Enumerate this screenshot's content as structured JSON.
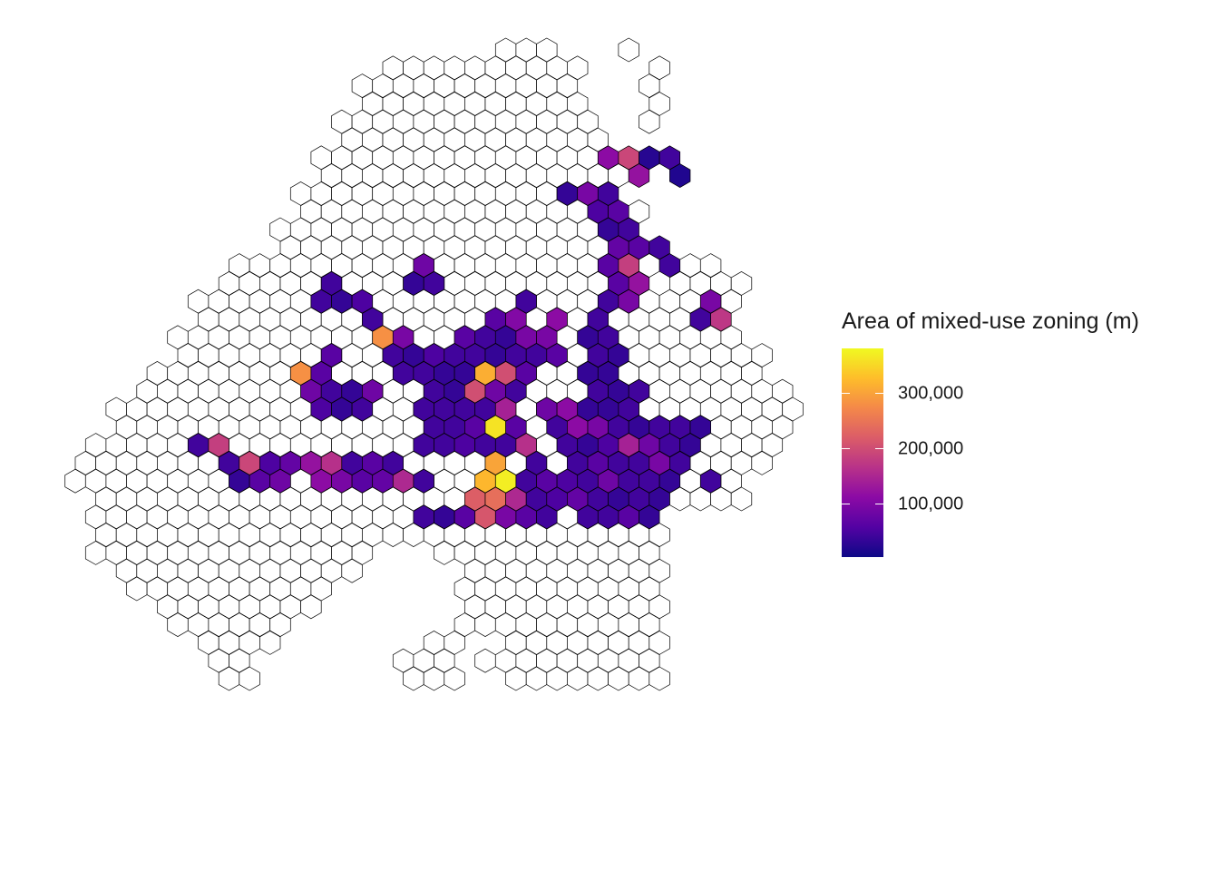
{
  "legend": {
    "title": "Area of mixed-use zoning (m)",
    "min": 0,
    "max": 380000,
    "breaks": [
      {
        "value": 100000,
        "label": "100,000"
      },
      {
        "value": 200000,
        "label": "200,000"
      },
      {
        "value": 300000,
        "label": "300,000"
      }
    ],
    "palette": [
      "#0d0887",
      "#5302a3",
      "#8b0aa5",
      "#b83289",
      "#db5c68",
      "#f48849",
      "#febd2a",
      "#f0f921"
    ]
  },
  "map": {
    "empty_fill": "#ffffff",
    "hex_outline": "#000000",
    "grid_rows": [
      {
        "start": 21,
        "end": 24
      },
      {
        "start": 15,
        "end": 25
      },
      {
        "start": 14,
        "end": 25
      },
      {
        "start": 14,
        "end": 25
      },
      {
        "start": 13,
        "end": 25
      },
      {
        "start": 13,
        "end": 25
      },
      {
        "start": 12,
        "end": 26
      },
      {
        "start": 12,
        "end": 26
      },
      {
        "start": 11,
        "end": 26
      },
      {
        "start": 11,
        "end": 27
      },
      {
        "start": 10,
        "end": 26
      },
      {
        "start": 10,
        "end": 27
      },
      {
        "start": 8,
        "end": 30
      },
      {
        "start": 7,
        "end": 31
      },
      {
        "start": 6,
        "end": 30
      },
      {
        "start": 6,
        "end": 31
      },
      {
        "start": 5,
        "end": 32
      },
      {
        "start": 5,
        "end": 33
      },
      {
        "start": 4,
        "end": 33
      },
      {
        "start": 3,
        "end": 34
      },
      {
        "start": 2,
        "end": 35
      },
      {
        "start": 2,
        "end": 34
      },
      {
        "start": 1,
        "end": 34
      },
      {
        "start": 0,
        "end": 33
      },
      {
        "start": 0,
        "end": 32
      },
      {
        "start": 1,
        "end": 32
      },
      {
        "start": 1,
        "end": 28
      },
      {
        "start": 1,
        "end": 28
      },
      {
        "start": 1,
        "end": 28
      },
      {
        "start": 2,
        "end": 28
      },
      {
        "start": 3,
        "end": 28
      },
      {
        "start": 4,
        "end": 28
      },
      {
        "start": 5,
        "end": 28
      },
      {
        "start": 6,
        "end": 28
      },
      {
        "start": 7,
        "end": 28
      },
      {
        "start": 7,
        "end": 28
      }
    ],
    "holes": [
      {
        "r": 34,
        "c": 9
      },
      {
        "r": 34,
        "c": 10
      },
      {
        "r": 34,
        "c": 11
      },
      {
        "r": 34,
        "c": 12
      },
      {
        "r": 34,
        "c": 13
      },
      {
        "r": 34,
        "c": 14
      },
      {
        "r": 34,
        "c": 15
      },
      {
        "r": 34,
        "c": 16
      },
      {
        "r": 34,
        "c": 17
      },
      {
        "r": 34,
        "c": 18
      },
      {
        "r": 34,
        "c": 19
      },
      {
        "r": 35,
        "c": 9
      },
      {
        "r": 35,
        "c": 10
      },
      {
        "r": 35,
        "c": 11
      },
      {
        "r": 35,
        "c": 12
      },
      {
        "r": 35,
        "c": 13
      },
      {
        "r": 35,
        "c": 14
      },
      {
        "r": 35,
        "c": 15
      },
      {
        "r": 35,
        "c": 16
      },
      {
        "r": 35,
        "c": 17
      },
      {
        "r": 35,
        "c": 18
      },
      {
        "r": 35,
        "c": 19
      },
      {
        "r": 35,
        "c": 20
      },
      {
        "r": 33,
        "c": 10
      },
      {
        "r": 33,
        "c": 11
      },
      {
        "r": 33,
        "c": 12
      },
      {
        "r": 33,
        "c": 13
      },
      {
        "r": 33,
        "c": 14
      },
      {
        "r": 33,
        "c": 15
      },
      {
        "r": 33,
        "c": 16
      },
      {
        "r": 33,
        "c": 17
      },
      {
        "r": 33,
        "c": 18
      },
      {
        "r": 33,
        "c": 19
      },
      {
        "r": 33,
        "c": 20
      },
      {
        "r": 32,
        "c": 11
      },
      {
        "r": 32,
        "c": 12
      },
      {
        "r": 32,
        "c": 13
      },
      {
        "r": 32,
        "c": 14
      },
      {
        "r": 32,
        "c": 15
      },
      {
        "r": 32,
        "c": 16
      },
      {
        "r": 32,
        "c": 17
      },
      {
        "r": 32,
        "c": 18
      },
      {
        "r": 31,
        "c": 12
      },
      {
        "r": 31,
        "c": 13
      },
      {
        "r": 31,
        "c": 14
      },
      {
        "r": 31,
        "c": 15
      },
      {
        "r": 31,
        "c": 16
      },
      {
        "r": 31,
        "c": 17
      },
      {
        "r": 31,
        "c": 18
      },
      {
        "r": 30,
        "c": 13
      },
      {
        "r": 30,
        "c": 14
      },
      {
        "r": 30,
        "c": 15
      },
      {
        "r": 30,
        "c": 16
      },
      {
        "r": 30,
        "c": 17
      },
      {
        "r": 30,
        "c": 18
      },
      {
        "r": 29,
        "c": 14
      },
      {
        "r": 29,
        "c": 15
      },
      {
        "r": 29,
        "c": 16
      },
      {
        "r": 29,
        "c": 17
      },
      {
        "r": 29,
        "c": 18
      },
      {
        "r": 28,
        "c": 15
      },
      {
        "r": 28,
        "c": 16
      },
      {
        "r": 28,
        "c": 17
      },
      {
        "r": 0,
        "c": 24
      },
      {
        "r": 1,
        "c": 25
      },
      {
        "r": 2,
        "c": 25
      },
      {
        "r": 3,
        "c": 25
      },
      {
        "r": 12,
        "c": 27
      },
      {
        "r": 13,
        "c": 28
      }
    ],
    "extra_cells": [
      {
        "r": 33,
        "c": 17
      },
      {
        "r": 33,
        "c": 18
      },
      {
        "r": 34,
        "c": 16
      },
      {
        "r": 34,
        "c": 17
      },
      {
        "r": 34,
        "c": 18
      },
      {
        "r": 35,
        "c": 16
      },
      {
        "r": 35,
        "c": 17
      },
      {
        "r": 35,
        "c": 18
      },
      {
        "r": 0,
        "c": 27
      },
      {
        "r": 1,
        "c": 28
      },
      {
        "r": 2,
        "c": 28
      },
      {
        "r": 3,
        "c": 28
      },
      {
        "r": 4,
        "c": 28
      },
      {
        "r": 12,
        "c": 30
      },
      {
        "r": 12,
        "c": 31
      },
      {
        "r": 13,
        "c": 30
      },
      {
        "r": 13,
        "c": 31
      },
      {
        "r": 13,
        "c": 32
      },
      {
        "r": 14,
        "c": 30
      },
      {
        "r": 14,
        "c": 31
      },
      {
        "r": 14,
        "c": 32
      },
      {
        "r": 15,
        "c": 30
      },
      {
        "r": 15,
        "c": 31
      }
    ],
    "filled": [
      {
        "r": 6,
        "c": 26,
        "v": 110000
      },
      {
        "r": 6,
        "c": 27,
        "v": 190000
      },
      {
        "r": 6,
        "c": 28,
        "v": 20000
      },
      {
        "r": 6,
        "c": 29,
        "v": 40000
      },
      {
        "r": 7,
        "c": 27,
        "v": 120000
      },
      {
        "r": 7,
        "c": 29,
        "v": 15000
      },
      {
        "r": 8,
        "c": 24,
        "v": 30000
      },
      {
        "r": 8,
        "c": 25,
        "v": 90000
      },
      {
        "r": 8,
        "c": 26,
        "v": 40000
      },
      {
        "r": 9,
        "c": 25,
        "v": 50000
      },
      {
        "r": 9,
        "c": 26,
        "v": 60000
      },
      {
        "r": 10,
        "c": 26,
        "v": 30000
      },
      {
        "r": 10,
        "c": 27,
        "v": 40000
      },
      {
        "r": 11,
        "c": 26,
        "v": 70000
      },
      {
        "r": 11,
        "c": 27,
        "v": 60000
      },
      {
        "r": 11,
        "c": 28,
        "v": 40000
      },
      {
        "r": 12,
        "c": 17,
        "v": 80000
      },
      {
        "r": 12,
        "c": 26,
        "v": 60000
      },
      {
        "r": 12,
        "c": 27,
        "v": 180000
      },
      {
        "r": 12,
        "c": 29,
        "v": 40000
      },
      {
        "r": 13,
        "c": 12,
        "v": 40000
      },
      {
        "r": 13,
        "c": 16,
        "v": 30000
      },
      {
        "r": 13,
        "c": 17,
        "v": 40000
      },
      {
        "r": 13,
        "c": 26,
        "v": 60000
      },
      {
        "r": 13,
        "c": 27,
        "v": 120000
      },
      {
        "r": 14,
        "c": 12,
        "v": 40000
      },
      {
        "r": 14,
        "c": 13,
        "v": 30000
      },
      {
        "r": 14,
        "c": 14,
        "v": 50000
      },
      {
        "r": 14,
        "c": 22,
        "v": 40000
      },
      {
        "r": 14,
        "c": 26,
        "v": 40000
      },
      {
        "r": 14,
        "c": 27,
        "v": 90000
      },
      {
        "r": 14,
        "c": 31,
        "v": 90000
      },
      {
        "r": 15,
        "c": 14,
        "v": 40000
      },
      {
        "r": 15,
        "c": 20,
        "v": 60000
      },
      {
        "r": 15,
        "c": 21,
        "v": 100000
      },
      {
        "r": 15,
        "c": 23,
        "v": 110000
      },
      {
        "r": 15,
        "c": 25,
        "v": 40000
      },
      {
        "r": 15,
        "c": 30,
        "v": 40000
      },
      {
        "r": 15,
        "c": 31,
        "v": 170000
      },
      {
        "r": 16,
        "c": 15,
        "v": 280000
      },
      {
        "r": 16,
        "c": 16,
        "v": 90000
      },
      {
        "r": 16,
        "c": 19,
        "v": 60000
      },
      {
        "r": 16,
        "c": 20,
        "v": 40000
      },
      {
        "r": 16,
        "c": 21,
        "v": 30000
      },
      {
        "r": 16,
        "c": 22,
        "v": 90000
      },
      {
        "r": 16,
        "c": 23,
        "v": 90000
      },
      {
        "r": 16,
        "c": 25,
        "v": 30000
      },
      {
        "r": 16,
        "c": 26,
        "v": 40000
      },
      {
        "r": 17,
        "c": 12,
        "v": 60000
      },
      {
        "r": 17,
        "c": 15,
        "v": 40000
      },
      {
        "r": 17,
        "c": 16,
        "v": 30000
      },
      {
        "r": 17,
        "c": 17,
        "v": 50000
      },
      {
        "r": 17,
        "c": 18,
        "v": 40000
      },
      {
        "r": 17,
        "c": 19,
        "v": 40000
      },
      {
        "r": 17,
        "c": 20,
        "v": 30000
      },
      {
        "r": 17,
        "c": 21,
        "v": 40000
      },
      {
        "r": 17,
        "c": 22,
        "v": 40000
      },
      {
        "r": 17,
        "c": 23,
        "v": 60000
      },
      {
        "r": 17,
        "c": 25,
        "v": 40000
      },
      {
        "r": 17,
        "c": 26,
        "v": 30000
      },
      {
        "r": 18,
        "c": 11,
        "v": 280000
      },
      {
        "r": 18,
        "c": 12,
        "v": 60000
      },
      {
        "r": 18,
        "c": 16,
        "v": 40000
      },
      {
        "r": 18,
        "c": 17,
        "v": 40000
      },
      {
        "r": 18,
        "c": 18,
        "v": 30000
      },
      {
        "r": 18,
        "c": 19,
        "v": 30000
      },
      {
        "r": 18,
        "c": 20,
        "v": 310000
      },
      {
        "r": 18,
        "c": 21,
        "v": 200000
      },
      {
        "r": 18,
        "c": 22,
        "v": 60000
      },
      {
        "r": 18,
        "c": 25,
        "v": 30000
      },
      {
        "r": 18,
        "c": 26,
        "v": 30000
      },
      {
        "r": 19,
        "c": 11,
        "v": 80000
      },
      {
        "r": 19,
        "c": 12,
        "v": 40000
      },
      {
        "r": 19,
        "c": 13,
        "v": 30000
      },
      {
        "r": 19,
        "c": 14,
        "v": 80000
      },
      {
        "r": 19,
        "c": 17,
        "v": 40000
      },
      {
        "r": 19,
        "c": 18,
        "v": 30000
      },
      {
        "r": 19,
        "c": 19,
        "v": 200000
      },
      {
        "r": 19,
        "c": 20,
        "v": 80000
      },
      {
        "r": 19,
        "c": 21,
        "v": 40000
      },
      {
        "r": 19,
        "c": 25,
        "v": 40000
      },
      {
        "r": 19,
        "c": 26,
        "v": 30000
      },
      {
        "r": 19,
        "c": 27,
        "v": 40000
      },
      {
        "r": 20,
        "c": 12,
        "v": 50000
      },
      {
        "r": 20,
        "c": 13,
        "v": 30000
      },
      {
        "r": 20,
        "c": 14,
        "v": 40000
      },
      {
        "r": 20,
        "c": 17,
        "v": 40000
      },
      {
        "r": 20,
        "c": 18,
        "v": 40000
      },
      {
        "r": 20,
        "c": 19,
        "v": 40000
      },
      {
        "r": 20,
        "c": 20,
        "v": 40000
      },
      {
        "r": 20,
        "c": 21,
        "v": 140000
      },
      {
        "r": 20,
        "c": 23,
        "v": 80000
      },
      {
        "r": 20,
        "c": 24,
        "v": 110000
      },
      {
        "r": 20,
        "c": 25,
        "v": 30000
      },
      {
        "r": 20,
        "c": 26,
        "v": 30000
      },
      {
        "r": 20,
        "c": 27,
        "v": 40000
      },
      {
        "r": 21,
        "c": 17,
        "v": 40000
      },
      {
        "r": 21,
        "c": 18,
        "v": 40000
      },
      {
        "r": 21,
        "c": 19,
        "v": 60000
      },
      {
        "r": 21,
        "c": 20,
        "v": 360000
      },
      {
        "r": 21,
        "c": 21,
        "v": 60000
      },
      {
        "r": 21,
        "c": 23,
        "v": 40000
      },
      {
        "r": 21,
        "c": 24,
        "v": 110000
      },
      {
        "r": 21,
        "c": 25,
        "v": 90000
      },
      {
        "r": 21,
        "c": 26,
        "v": 40000
      },
      {
        "r": 21,
        "c": 27,
        "v": 30000
      },
      {
        "r": 21,
        "c": 28,
        "v": 40000
      },
      {
        "r": 21,
        "c": 29,
        "v": 40000
      },
      {
        "r": 21,
        "c": 30,
        "v": 30000
      },
      {
        "r": 22,
        "c": 6,
        "v": 40000
      },
      {
        "r": 22,
        "c": 7,
        "v": 180000
      },
      {
        "r": 22,
        "c": 17,
        "v": 40000
      },
      {
        "r": 22,
        "c": 18,
        "v": 40000
      },
      {
        "r": 22,
        "c": 19,
        "v": 50000
      },
      {
        "r": 22,
        "c": 20,
        "v": 40000
      },
      {
        "r": 22,
        "c": 21,
        "v": 40000
      },
      {
        "r": 22,
        "c": 22,
        "v": 160000
      },
      {
        "r": 22,
        "c": 24,
        "v": 40000
      },
      {
        "r": 22,
        "c": 25,
        "v": 30000
      },
      {
        "r": 22,
        "c": 26,
        "v": 50000
      },
      {
        "r": 22,
        "c": 27,
        "v": 140000
      },
      {
        "r": 22,
        "c": 28,
        "v": 80000
      },
      {
        "r": 22,
        "c": 29,
        "v": 40000
      },
      {
        "r": 22,
        "c": 30,
        "v": 30000
      },
      {
        "r": 23,
        "c": 7,
        "v": 40000
      },
      {
        "r": 23,
        "c": 8,
        "v": 190000
      },
      {
        "r": 23,
        "c": 9,
        "v": 50000
      },
      {
        "r": 23,
        "c": 10,
        "v": 70000
      },
      {
        "r": 23,
        "c": 11,
        "v": 120000
      },
      {
        "r": 23,
        "c": 12,
        "v": 160000
      },
      {
        "r": 23,
        "c": 13,
        "v": 40000
      },
      {
        "r": 23,
        "c": 14,
        "v": 60000
      },
      {
        "r": 23,
        "c": 15,
        "v": 40000
      },
      {
        "r": 23,
        "c": 20,
        "v": 300000
      },
      {
        "r": 23,
        "c": 22,
        "v": 40000
      },
      {
        "r": 23,
        "c": 24,
        "v": 40000
      },
      {
        "r": 23,
        "c": 25,
        "v": 60000
      },
      {
        "r": 23,
        "c": 26,
        "v": 40000
      },
      {
        "r": 23,
        "c": 27,
        "v": 40000
      },
      {
        "r": 23,
        "c": 28,
        "v": 90000
      },
      {
        "r": 23,
        "c": 29,
        "v": 40000
      },
      {
        "r": 24,
        "c": 8,
        "v": 30000
      },
      {
        "r": 24,
        "c": 9,
        "v": 60000
      },
      {
        "r": 24,
        "c": 10,
        "v": 80000
      },
      {
        "r": 24,
        "c": 12,
        "v": 110000
      },
      {
        "r": 24,
        "c": 13,
        "v": 90000
      },
      {
        "r": 24,
        "c": 14,
        "v": 60000
      },
      {
        "r": 24,
        "c": 15,
        "v": 70000
      },
      {
        "r": 24,
        "c": 16,
        "v": 150000
      },
      {
        "r": 24,
        "c": 17,
        "v": 40000
      },
      {
        "r": 24,
        "c": 20,
        "v": 320000
      },
      {
        "r": 24,
        "c": 21,
        "v": 370000
      },
      {
        "r": 24,
        "c": 22,
        "v": 40000
      },
      {
        "r": 24,
        "c": 23,
        "v": 60000
      },
      {
        "r": 24,
        "c": 24,
        "v": 50000
      },
      {
        "r": 24,
        "c": 25,
        "v": 40000
      },
      {
        "r": 24,
        "c": 26,
        "v": 80000
      },
      {
        "r": 24,
        "c": 27,
        "v": 40000
      },
      {
        "r": 24,
        "c": 28,
        "v": 40000
      },
      {
        "r": 24,
        "c": 29,
        "v": 30000
      },
      {
        "r": 24,
        "c": 31,
        "v": 40000
      },
      {
        "r": 25,
        "c": 19,
        "v": 220000
      },
      {
        "r": 25,
        "c": 20,
        "v": 240000
      },
      {
        "r": 25,
        "c": 21,
        "v": 150000
      },
      {
        "r": 25,
        "c": 22,
        "v": 40000
      },
      {
        "r": 25,
        "c": 23,
        "v": 50000
      },
      {
        "r": 25,
        "c": 24,
        "v": 70000
      },
      {
        "r": 25,
        "c": 25,
        "v": 40000
      },
      {
        "r": 25,
        "c": 26,
        "v": 30000
      },
      {
        "r": 25,
        "c": 27,
        "v": 40000
      },
      {
        "r": 25,
        "c": 28,
        "v": 30000
      },
      {
        "r": 26,
        "c": 17,
        "v": 40000
      },
      {
        "r": 26,
        "c": 18,
        "v": 30000
      },
      {
        "r": 26,
        "c": 19,
        "v": 60000
      },
      {
        "r": 26,
        "c": 20,
        "v": 210000
      },
      {
        "r": 26,
        "c": 21,
        "v": 90000
      },
      {
        "r": 26,
        "c": 22,
        "v": 60000
      },
      {
        "r": 26,
        "c": 23,
        "v": 40000
      },
      {
        "r": 26,
        "c": 25,
        "v": 40000
      },
      {
        "r": 26,
        "c": 26,
        "v": 40000
      },
      {
        "r": 26,
        "c": 27,
        "v": 60000
      },
      {
        "r": 26,
        "c": 28,
        "v": 30000
      }
    ]
  }
}
